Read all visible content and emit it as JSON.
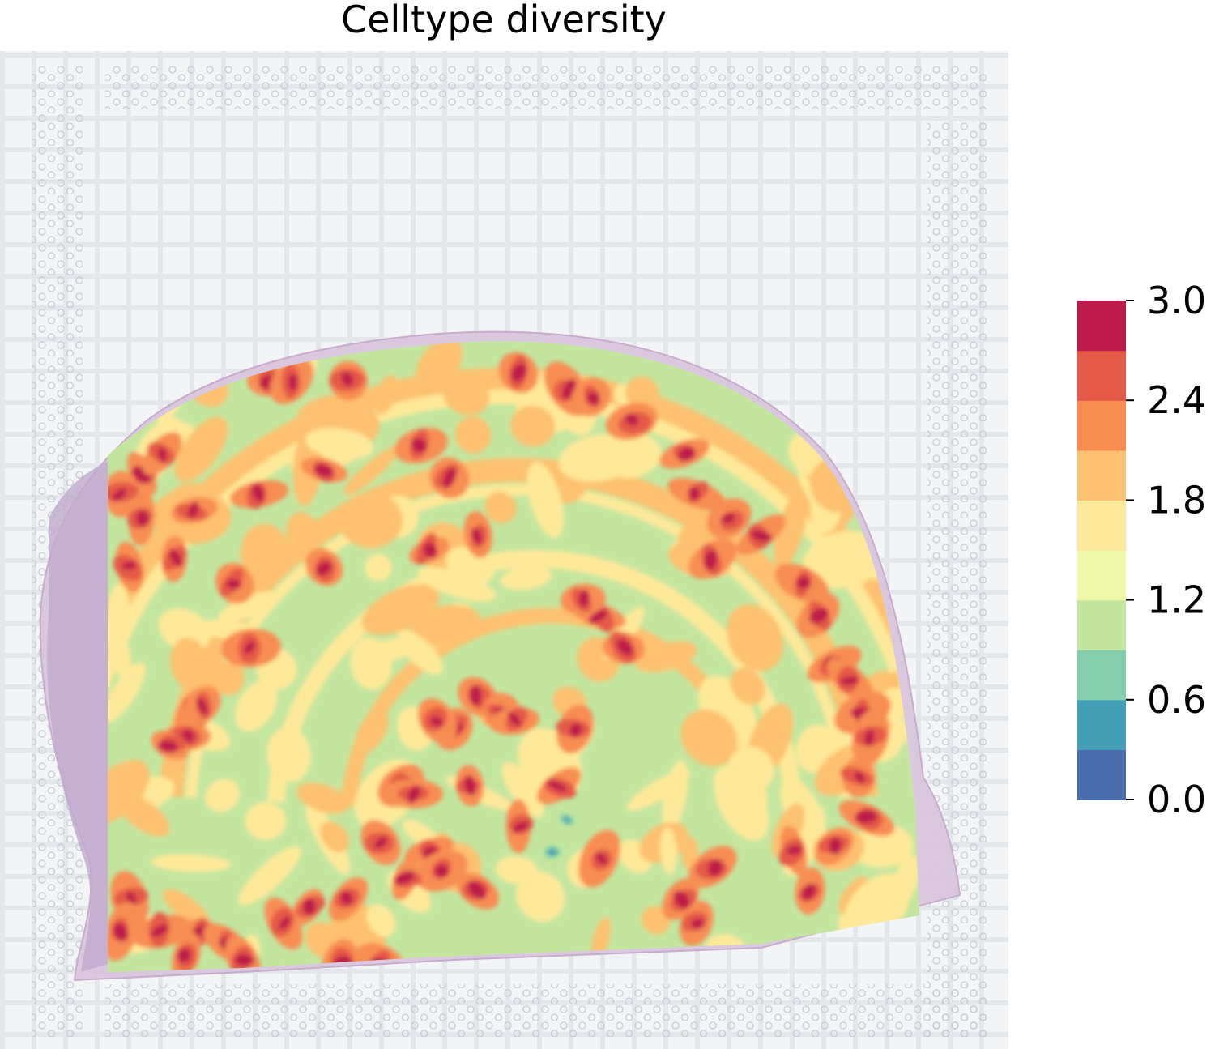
{
  "chart_data": {
    "type": "heatmap",
    "title": "Celltype diversity",
    "xlabel": "",
    "ylabel": "",
    "colorbar": {
      "vmin": 0.0,
      "vmax": 3.0,
      "ticks": [
        "0.0",
        "0.6",
        "1.2",
        "1.8",
        "2.4",
        "3.0"
      ],
      "levels": [
        0.0,
        0.3,
        0.6,
        0.9,
        1.2,
        1.5,
        1.8,
        2.1,
        2.4,
        2.7,
        3.0
      ],
      "colors": [
        "#4a6db0",
        "#449eb5",
        "#84ceac",
        "#c3e69f",
        "#eff8a6",
        "#fee99a",
        "#fdc171",
        "#f88d52",
        "#e55a46",
        "#be1b4b"
      ]
    },
    "background": "spatial tissue section over spot grid",
    "dominant_level": 1.2,
    "notes": "contour map of cell type diversity; mostly 0.9-1.5 with 1.5-2.1 bands and 2.1-3.0 hotspots along the tissue border"
  }
}
